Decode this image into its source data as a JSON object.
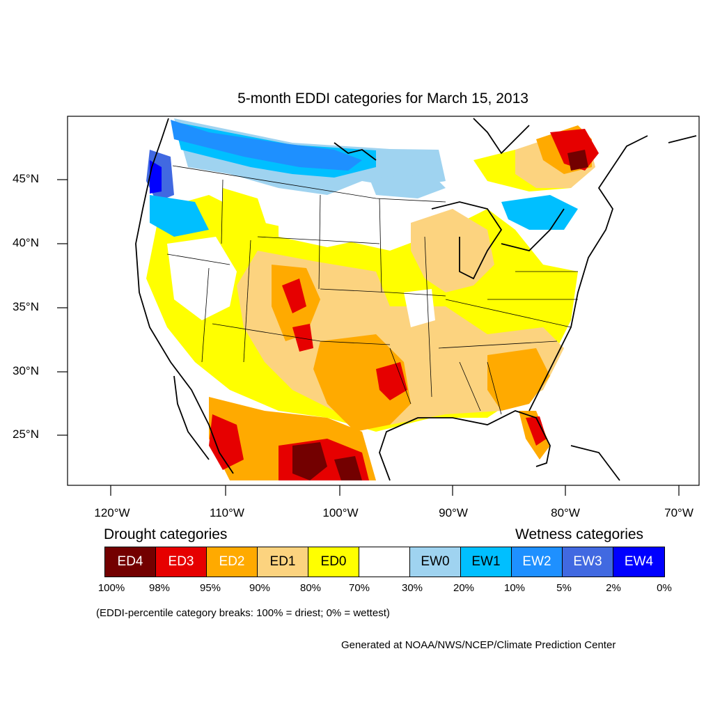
{
  "map": {
    "title": "5-month EDDI categories for March 15, 2013",
    "lat_labels": [
      "45°N",
      "40°N",
      "35°N",
      "30°N",
      "25°N"
    ],
    "lon_labels": [
      "120°W",
      "110°W",
      "100°W",
      "90°W",
      "80°W",
      "70°W"
    ]
  },
  "legend": {
    "drought_title": "Drought categories",
    "wetness_title": "Wetness categories",
    "categories": [
      {
        "label": "ED4",
        "color": "#730000",
        "text_color": "#ffffff"
      },
      {
        "label": "ED3",
        "color": "#e60000",
        "text_color": "#ffffff"
      },
      {
        "label": "ED2",
        "color": "#ffaa00",
        "text_color": "#ffffff"
      },
      {
        "label": "ED1",
        "color": "#fcd37f",
        "text_color": "#000000"
      },
      {
        "label": "ED0",
        "color": "#ffff00",
        "text_color": "#000000"
      },
      {
        "label": "",
        "color": "#ffffff",
        "text_color": "#000000"
      },
      {
        "label": "EW0",
        "color": "#9fd3f0",
        "text_color": "#000000"
      },
      {
        "label": "EW1",
        "color": "#00bfff",
        "text_color": "#000000"
      },
      {
        "label": "EW2",
        "color": "#1e90ff",
        "text_color": "#ffffff"
      },
      {
        "label": "EW3",
        "color": "#4169e1",
        "text_color": "#ffffff"
      },
      {
        "label": "EW4",
        "color": "#0000ff",
        "text_color": "#ffffff"
      }
    ],
    "percentiles": [
      "100%",
      "98%",
      "95%",
      "90%",
      "80%",
      "70%",
      "30%",
      "20%",
      "10%",
      "5%",
      "2%",
      "0%"
    ]
  },
  "note": "(EDDI-percentile category breaks: 100% = driest; 0% = wettest)",
  "credit": "Generated at NOAA/NWS/NCEP/Climate Prediction Center"
}
